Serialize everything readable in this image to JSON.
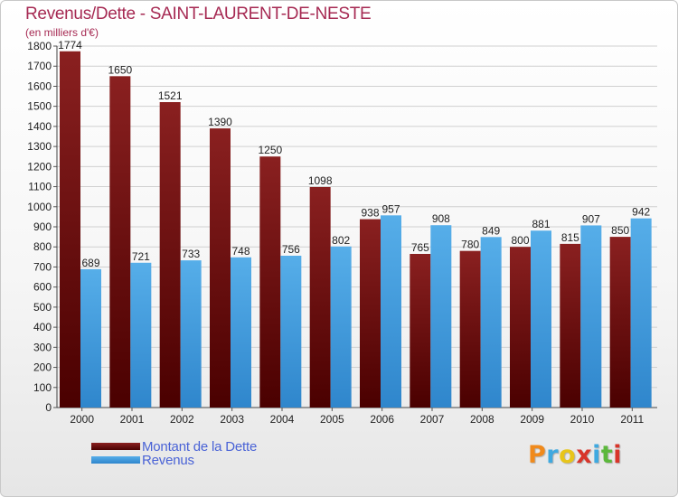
{
  "chart_data": {
    "type": "bar",
    "title": "Revenus/Dette - SAINT-LAURENT-DE-NESTE",
    "subtitle": "(en milliers d'€)",
    "categories": [
      "2000",
      "2001",
      "2002",
      "2003",
      "2004",
      "2005",
      "2006",
      "2007",
      "2008",
      "2009",
      "2010",
      "2011"
    ],
    "series": [
      {
        "name": "Montant de la Dette",
        "values": [
          1774,
          1650,
          1521,
          1390,
          1250,
          1098,
          938,
          765,
          780,
          800,
          815,
          850
        ],
        "color": "#7a1414"
      },
      {
        "name": "Revenus",
        "values": [
          689,
          721,
          733,
          748,
          756,
          802,
          957,
          908,
          849,
          881,
          907,
          942
        ],
        "color": "#4aa3e4"
      }
    ],
    "ylim": [
      0,
      1800
    ],
    "yticks": [
      0,
      100,
      200,
      300,
      400,
      500,
      600,
      700,
      800,
      900,
      1000,
      1100,
      1200,
      1300,
      1400,
      1500,
      1600,
      1700,
      1800
    ],
    "grid": true,
    "legend_position": "bottom-left"
  },
  "logo": {
    "text": "Proxiti",
    "letter_colors": [
      "#f08a1c",
      "#3fa9e0",
      "#e8c51a",
      "#d8352a",
      "#3fa9e0",
      "#5cb83c",
      "#d8352a"
    ]
  }
}
